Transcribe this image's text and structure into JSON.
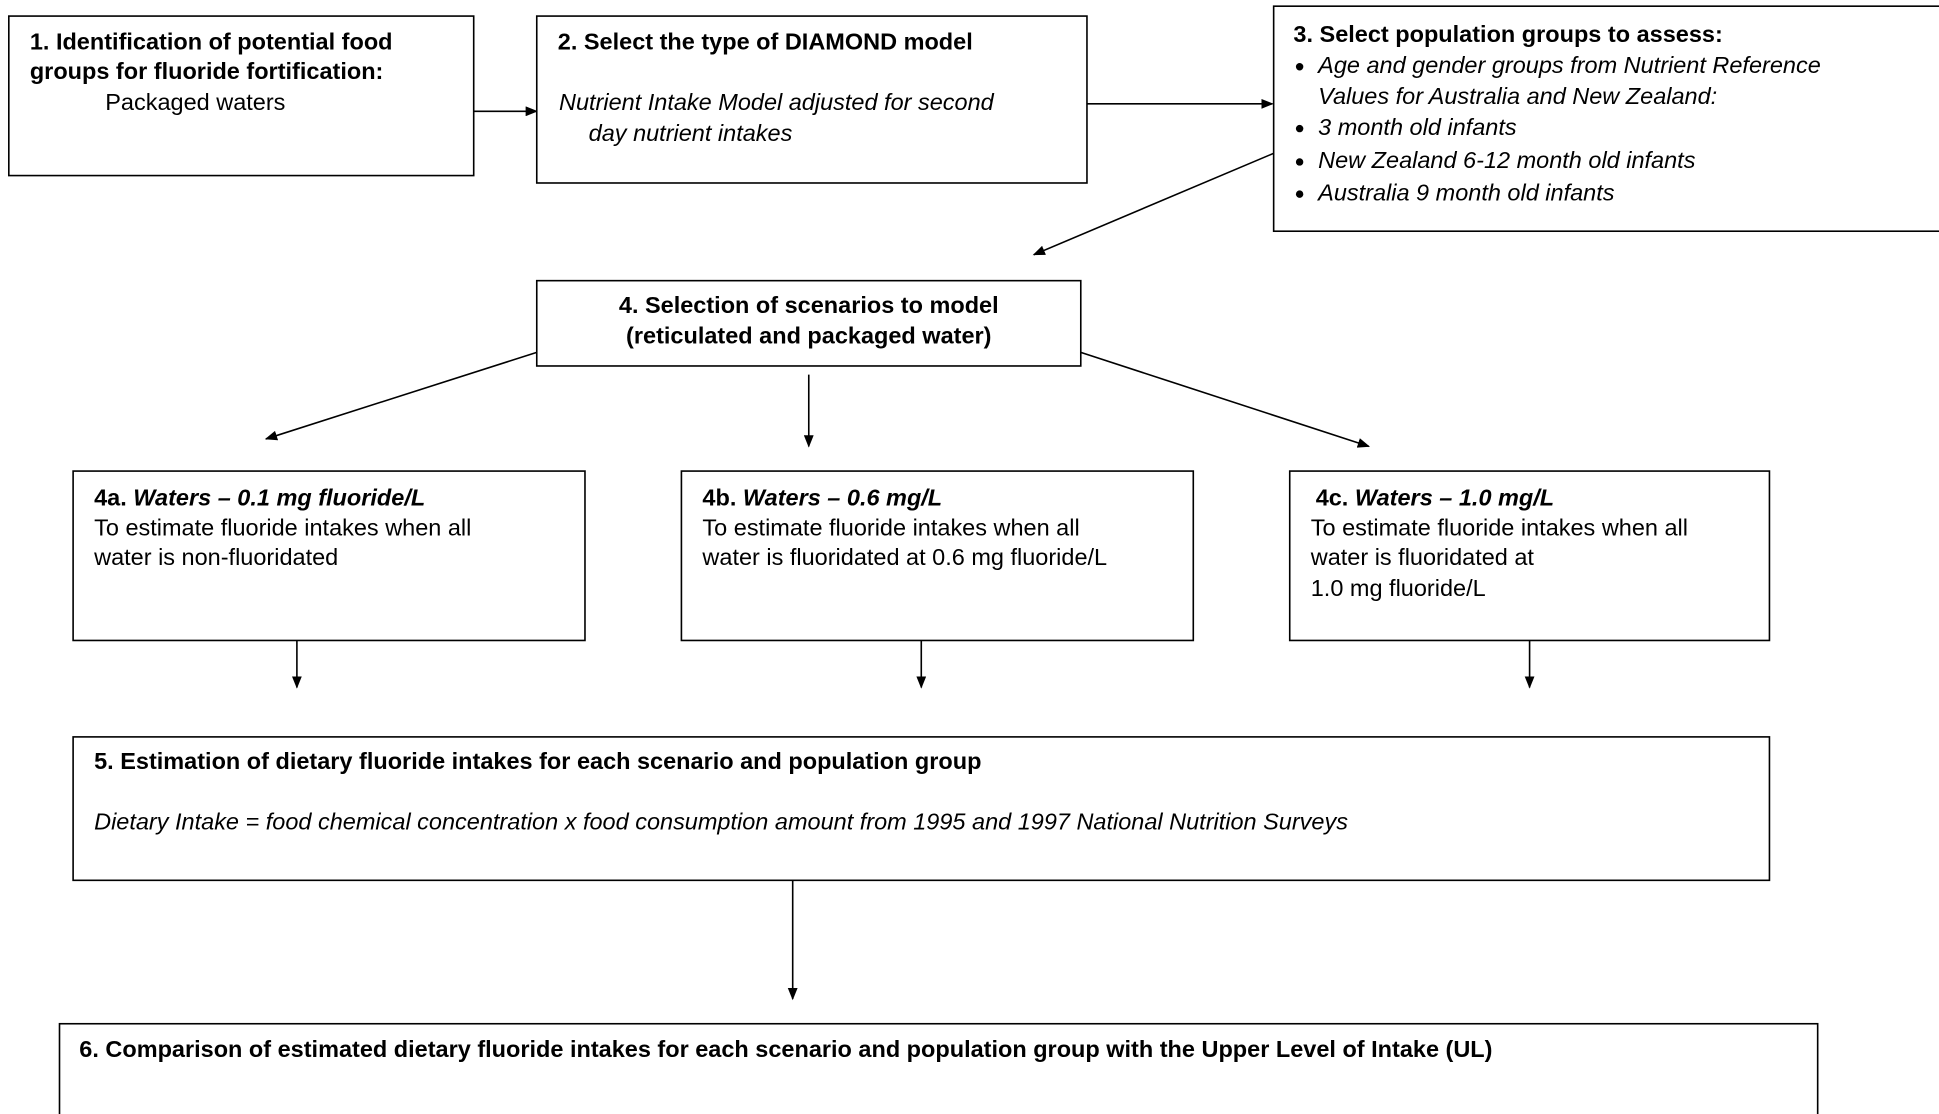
{
  "steps": [
    {
      "title": [
        "1. Identification of potential food",
        "groups for fluoride fortification:"
      ],
      "body": [
        "Packaged waters"
      ]
    },
    {
      "title": [
        "2. Select the type of DIAMOND model"
      ],
      "body": [
        "Nutrient Intake Model adjusted for second",
        "day nutrient intakes"
      ]
    },
    {
      "title": [
        "3. Select population groups to assess:"
      ],
      "items": [
        [
          "Age and gender groups from Nutrient Reference",
          "Values for Australia and New Zealand:"
        ],
        [
          "3 month old infants"
        ],
        [
          "New Zealand 6-12 month old infants"
        ],
        [
          "Australia 9 month old infants"
        ]
      ]
    },
    {
      "title": [
        "4. Selection of scenarios to model",
        "(reticulated and packaged water)"
      ]
    },
    {
      "label": "4a.",
      "title": "Waters – 0.1 mg fluoride/L",
      "body": [
        "To estimate fluoride intakes when all",
        "water is non-fluoridated"
      ]
    },
    {
      "label": "4b.",
      "title": "Waters – 0.6 mg/L",
      "body": [
        "To estimate fluoride intakes when all",
        "water is fluoridated at 0.6 mg fluoride/L"
      ]
    },
    {
      "label": "4c.",
      "title": "Waters – 1.0 mg/L",
      "body": [
        "To estimate fluoride intakes when all",
        "water is fluoridated at",
        "1.0 mg fluoride/L"
      ]
    },
    {
      "title": [
        "5. Estimation of dietary fluoride intakes for each scenario and population group"
      ],
      "body": [
        "Dietary Intake = food chemical concentration x food consumption amount from 1995 and 1997 National Nutrition Surveys"
      ]
    },
    {
      "title": [
        "6. Comparison of estimated dietary fluoride intakes for each scenario and population group with the Upper Level of Intake (UL)"
      ]
    }
  ]
}
